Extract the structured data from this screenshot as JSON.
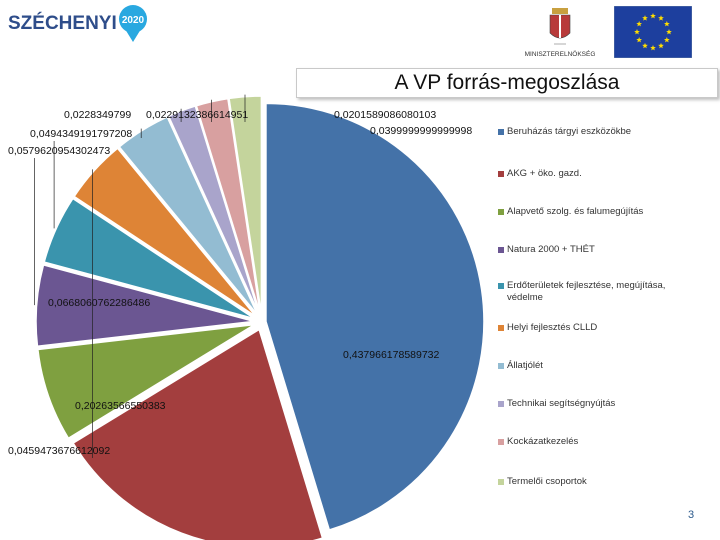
{
  "header": {
    "brand_name": "SZÉCHENYI",
    "brand_year": "2020",
    "ministry_label": "MINISZTERELNÖKSÉG"
  },
  "colors": {
    "title_border": "#c9c9c9",
    "page_number": "#2c5a8c"
  },
  "chart_data": {
    "type": "pie",
    "title": "A VP forrás-megoszlása",
    "legend_placement": "right",
    "labels": [
      "Beruházás tárgyi eszközökbe",
      "AKG + öko. gazd.",
      "Alapvető szolg. és falumegújítás",
      "Natura 2000 + THÉT",
      "Erdőterületek fejlesztése, megújítása, védelme",
      "Helyi fejlesztés CLLD",
      "Állatjólét",
      "Technikai segítségnyújtás",
      "Kockázatkezelés",
      "Termelői csoportok"
    ],
    "values": [
      0.437966178589732,
      0.20263566550383,
      0.0668060762286486,
      0.0579620954302473,
      0.0494349191797208,
      0.0459473676612092,
      0.0399999999999998,
      0.0201589086080103,
      0.0228349799,
      0.0229132386614951
    ],
    "value_labels": [
      "0,437966178589732",
      "0,20263566550383",
      "0,0668060762286486",
      "0,0579620954302473",
      "0,0494349191797208",
      "0,0459473676612092",
      "0,0399999999999998",
      "0,0201589086080103",
      "0,0228349799",
      "0,0229132386614951"
    ],
    "colors": [
      "#4472a8",
      "#a33e3e",
      "#7fa040",
      "#6b5692",
      "#3a94ad",
      "#de8436",
      "#93bcd2",
      "#a9a4cb",
      "#d8a0a0",
      "#c4d49c"
    ],
    "exploded": true
  },
  "footer": {
    "page_number": "3"
  }
}
